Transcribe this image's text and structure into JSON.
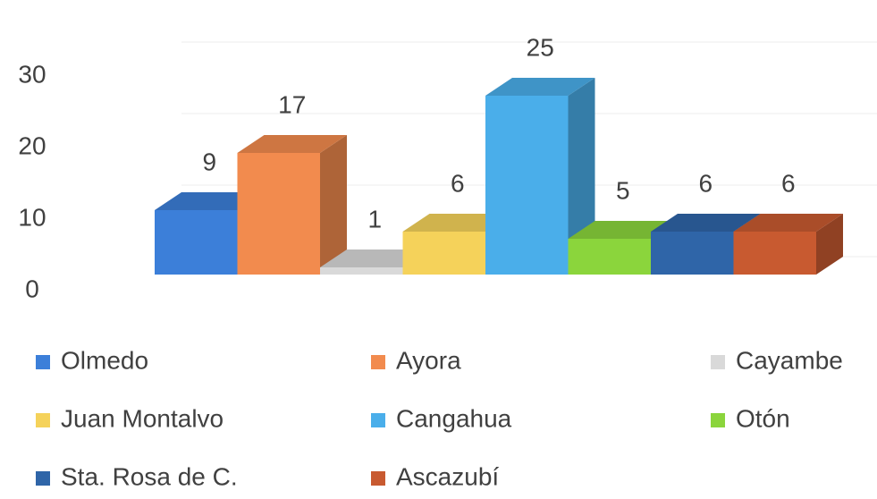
{
  "chart_data": {
    "type": "bar3d",
    "series": [
      {
        "name": "Olmedo",
        "color": "#3c7fd9",
        "values": [
          9
        ]
      },
      {
        "name": "Ayora",
        "color": "#f28b4e",
        "values": [
          17
        ]
      },
      {
        "name": "Cayambe",
        "color": "#d9d9d9",
        "values": [
          1
        ]
      },
      {
        "name": "Juan Montalvo",
        "color": "#f5d25a",
        "values": [
          6
        ]
      },
      {
        "name": "Cangahua",
        "color": "#4aaeea",
        "values": [
          25
        ]
      },
      {
        "name": "Otón",
        "color": "#8bd53c",
        "values": [
          5
        ]
      },
      {
        "name": "Sta. Rosa de C.",
        "color": "#2f65a8",
        "values": [
          6
        ]
      },
      {
        "name": "Ascazubí",
        "color": "#c85a30",
        "values": [
          6
        ]
      }
    ],
    "ylim": [
      0,
      30
    ],
    "yticks": [
      0,
      10,
      20,
      30
    ],
    "grid": true,
    "legend": "bottom"
  }
}
